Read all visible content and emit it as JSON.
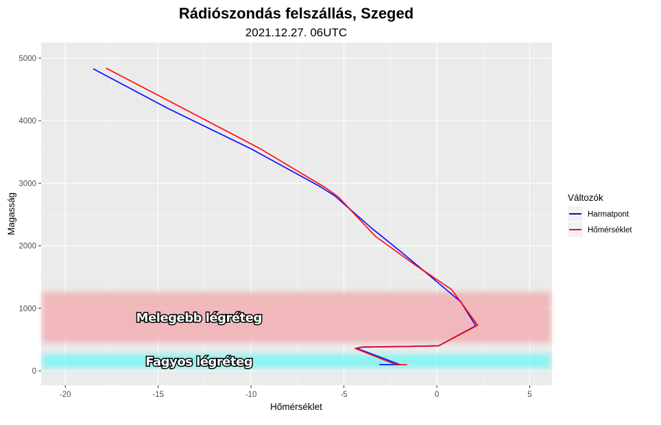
{
  "chart_data": {
    "type": "line",
    "title": "Rádiószondás felszállás, Szeged",
    "subtitle": "2021.12.27. 06UTC",
    "xlabel": "Hőmérséklet",
    "ylabel": "Magasság",
    "xlim": [
      -21.3,
      6.2
    ],
    "ylim": [
      -230,
      5250
    ],
    "x_ticks": [
      -20,
      -15,
      -10,
      -5,
      0,
      5
    ],
    "y_ticks": [
      0,
      1000,
      2000,
      3000,
      4000,
      5000
    ],
    "grid": true,
    "legend": {
      "title": "Változók",
      "position": "right"
    },
    "series": [
      {
        "name": "Harmatpont",
        "color": "#0000ff",
        "points": [
          [
            -3.1,
            100
          ],
          [
            -2.0,
            100
          ],
          [
            -4.3,
            360
          ],
          [
            -4.0,
            380
          ],
          [
            -1.5,
            390
          ],
          [
            0.1,
            400
          ],
          [
            2.1,
            720
          ],
          [
            1.3,
            1100
          ],
          [
            -0.5,
            1550
          ],
          [
            -2.0,
            1920
          ],
          [
            -3.5,
            2280
          ],
          [
            -5.5,
            2800
          ],
          [
            -6.3,
            2950
          ],
          [
            -10.0,
            3550
          ],
          [
            -14.5,
            4200
          ],
          [
            -18.5,
            4830
          ]
        ]
      },
      {
        "name": "Hőmérséklet",
        "color": "#ff0000",
        "points": [
          [
            -1.6,
            100
          ],
          [
            -2.2,
            100
          ],
          [
            -4.4,
            360
          ],
          [
            -4.0,
            380
          ],
          [
            -1.5,
            390
          ],
          [
            0.1,
            400
          ],
          [
            2.2,
            730
          ],
          [
            0.8,
            1300
          ],
          [
            -1.2,
            1700
          ],
          [
            -3.3,
            2150
          ],
          [
            -5.3,
            2780
          ],
          [
            -6.0,
            2930
          ],
          [
            -9.5,
            3550
          ],
          [
            -14.0,
            4250
          ],
          [
            -17.8,
            4840
          ]
        ]
      }
    ],
    "bands": [
      {
        "label": "Melegebb légréteg",
        "y_from": 450,
        "y_to": 1260,
        "color": "#f2a7ab",
        "label_x": -12.8,
        "label_y": 860
      },
      {
        "label": "Fagyos légréteg",
        "y_from": 40,
        "y_to": 270,
        "color": "#6ff5f4",
        "label_x": -12.8,
        "label_y": 160
      }
    ]
  }
}
